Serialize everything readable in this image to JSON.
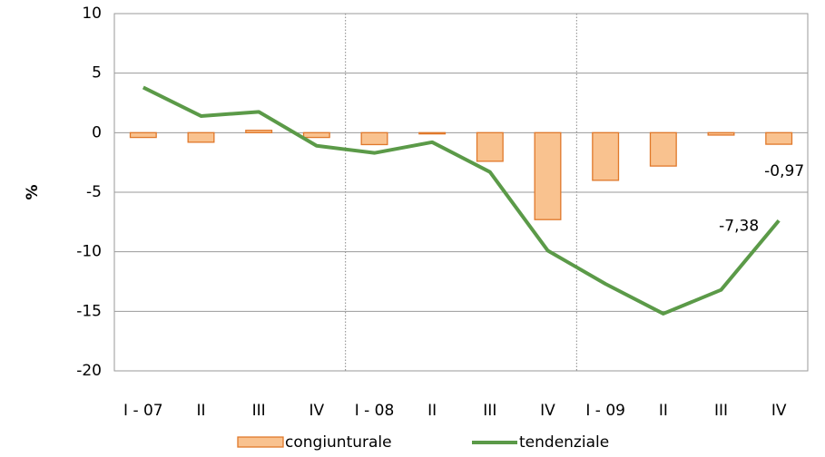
{
  "chart_data": {
    "type": "bar-line",
    "y_label": "%",
    "categories": [
      "I - 07",
      "II",
      "III",
      "IV",
      "I - 08",
      "II",
      "III",
      "IV",
      "I - 09",
      "II",
      "III",
      "IV"
    ],
    "series": [
      {
        "name": "congiunturale",
        "type": "bar",
        "color": "#f9c28f",
        "edge_color": "#e0782a",
        "values": [
          -0.4,
          -0.8,
          0.2,
          -0.4,
          -1.0,
          -0.1,
          -2.4,
          -7.3,
          -4.0,
          -2.8,
          -0.2,
          -0.97
        ],
        "value_labels": [
          null,
          null,
          null,
          null,
          null,
          null,
          null,
          null,
          null,
          null,
          null,
          "-0,97"
        ]
      },
      {
        "name": "tendenziale",
        "type": "line",
        "color": "#5b9a48",
        "values": [
          3.8,
          1.4,
          1.75,
          -1.1,
          -1.7,
          -0.8,
          -3.3,
          -9.9,
          -12.7,
          -15.2,
          -13.2,
          -7.38
        ],
        "value_labels": [
          null,
          null,
          null,
          null,
          null,
          null,
          null,
          null,
          null,
          null,
          null,
          "-7,38"
        ]
      }
    ],
    "ylim": [
      -20,
      10
    ],
    "yticks": [
      -20,
      -15,
      -10,
      -5,
      0,
      5,
      10
    ],
    "grid": true,
    "legend": "bottom"
  }
}
